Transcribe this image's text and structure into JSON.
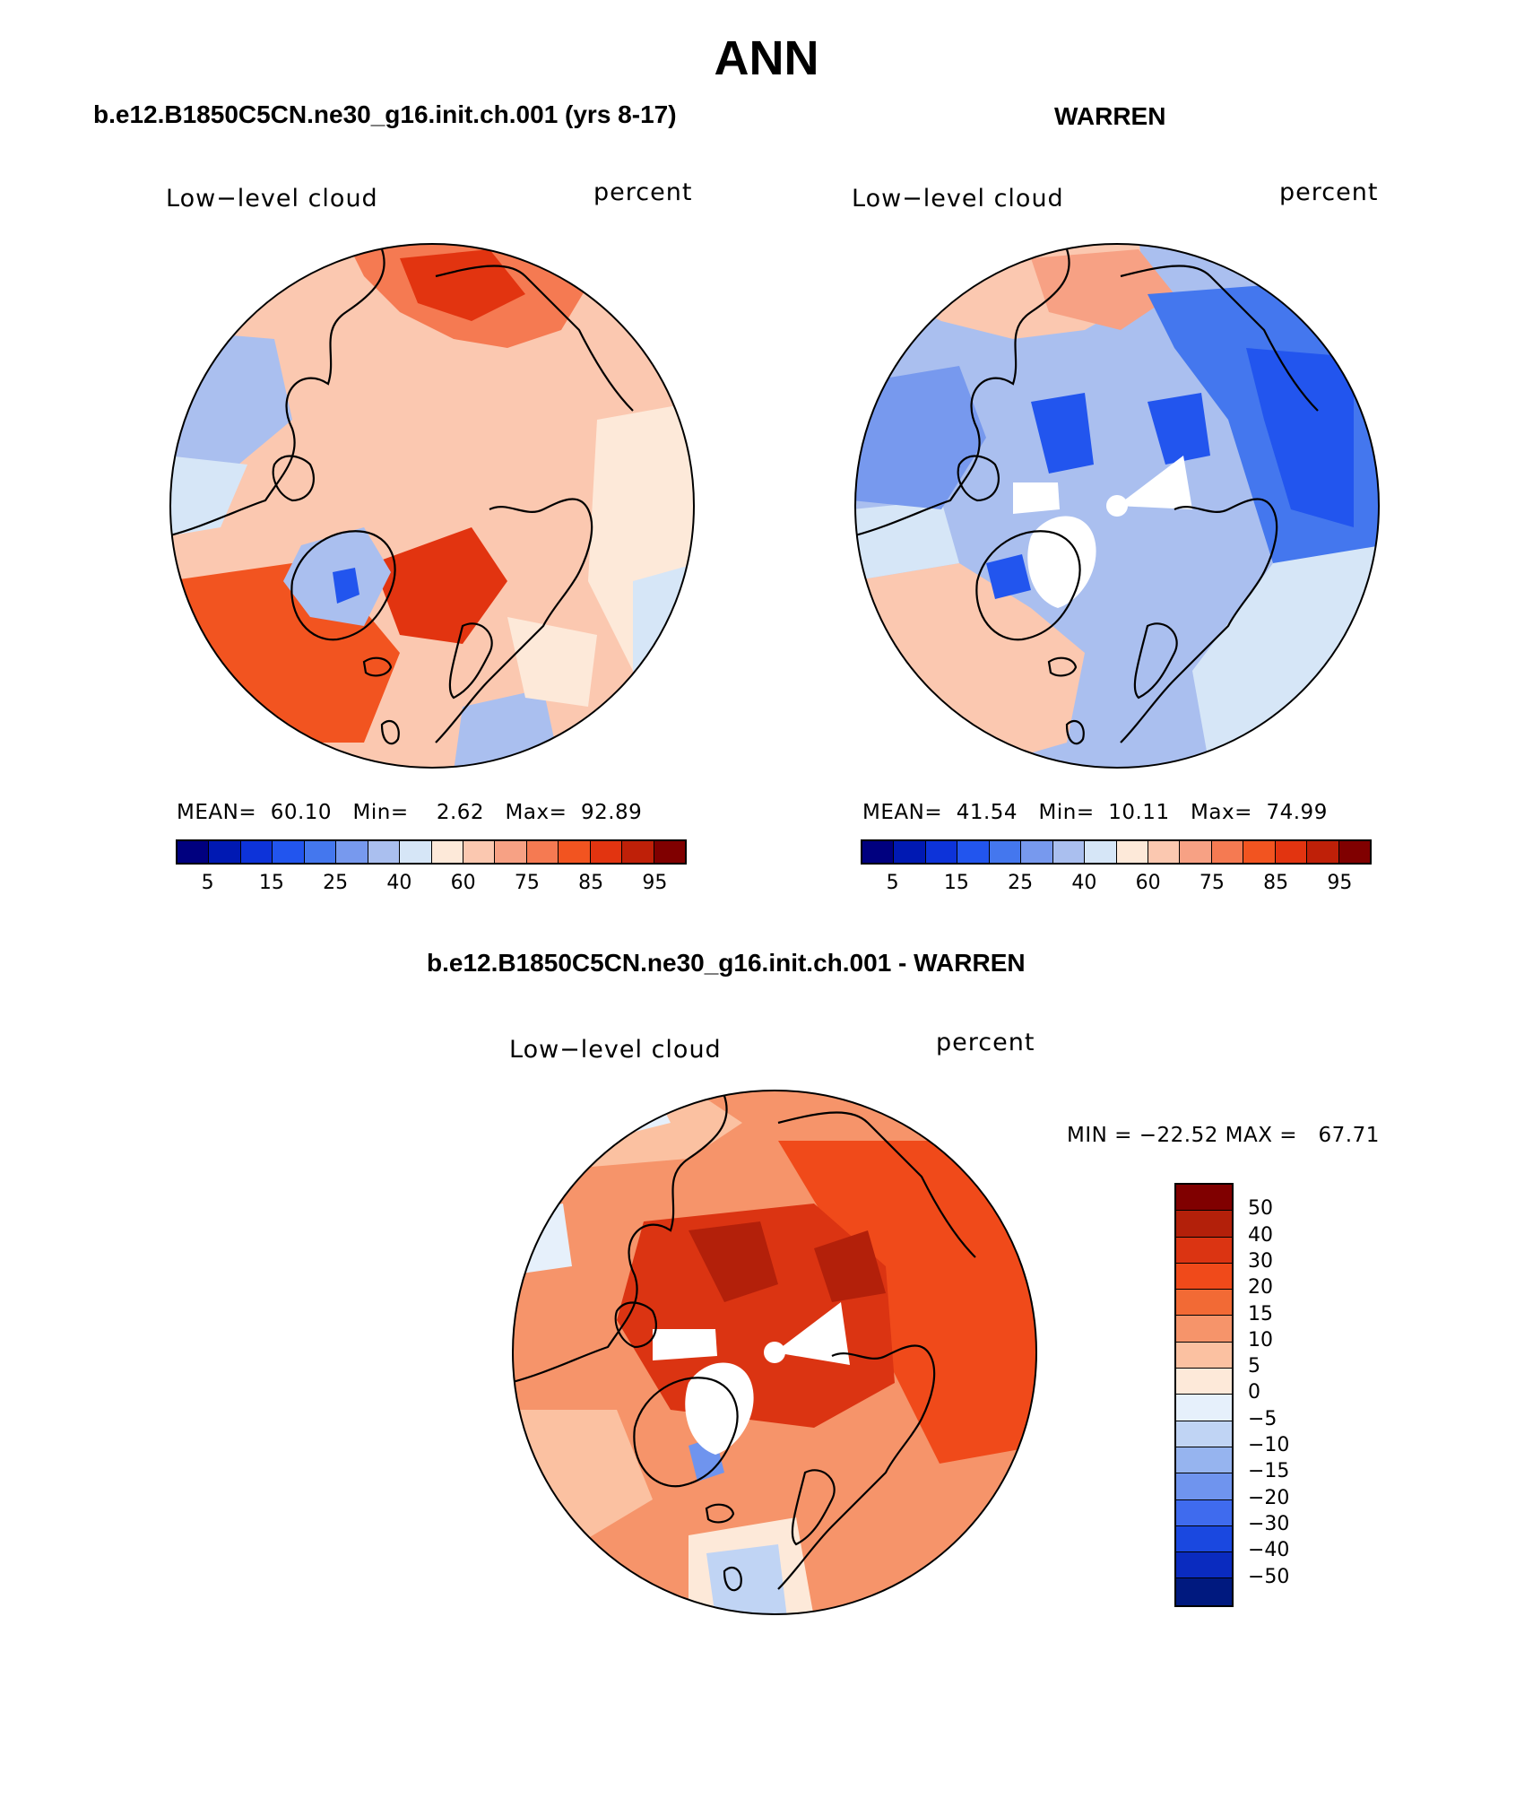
{
  "title": "ANN",
  "panels": {
    "model": {
      "title": "b.e12.B1850C5CN.ne30_g16.init.ch.001 (yrs 8-17)",
      "left_label": "Low−level cloud",
      "right_label": "percent",
      "stats": {
        "mean_label": "MEAN=",
        "mean": "60.10",
        "min_label": "Min=",
        "min": "2.62",
        "max_label": "Max=",
        "max": "92.89"
      }
    },
    "obs": {
      "title": "WARREN",
      "left_label": "Low−level cloud",
      "right_label": "percent",
      "stats": {
        "mean_label": "MEAN=",
        "mean": "41.54",
        "min_label": "Min=",
        "min": "10.11",
        "max_label": "Max=",
        "max": "74.99"
      }
    },
    "diff": {
      "title": "b.e12.B1850C5CN.ne30_g16.init.ch.001 - WARREN",
      "left_label": "Low−level cloud",
      "right_label": "percent",
      "stats_text": "MIN = −22.52 MAX =   67.71"
    }
  },
  "abs_colorbar": {
    "colors": [
      "#00007f",
      "#0019b3",
      "#0d33d9",
      "#2255ee",
      "#4477ee",
      "#7799ee",
      "#aabfef",
      "#d6e6f7",
      "#fde9d9",
      "#fbc8b0",
      "#f7a184",
      "#f57a52",
      "#f25420",
      "#e23410",
      "#bf2008",
      "#800000"
    ],
    "tick_labels": [
      "5",
      "15",
      "25",
      "40",
      "60",
      "75",
      "85",
      "95"
    ]
  },
  "diff_colorbar": {
    "colors": [
      "#800000",
      "#b3200a",
      "#db3412",
      "#f04a1a",
      "#f26a35",
      "#f6946a",
      "#fbc1a1",
      "#fde9d9",
      "#e6f0fb",
      "#c0d4f4",
      "#96b4ef",
      "#6f94ee",
      "#3f6bee",
      "#1a48e0",
      "#0a2bbf",
      "#00197f"
    ],
    "tick_labels": [
      "50",
      "40",
      "30",
      "20",
      "15",
      "10",
      "5",
      "0",
      "−5",
      "−10",
      "−15",
      "−20",
      "−30",
      "−40",
      "−50"
    ]
  },
  "map_fills": {
    "model": {
      "base": "#fbc8b0",
      "colors": [
        "#f57a52",
        "#f25420",
        "#e23410",
        "#fde9d9",
        "#d6e6f7",
        "#aabfef",
        "#7799ee",
        "#2255ee",
        "#fbc8b0"
      ]
    },
    "obs": {
      "base": "#aabfef",
      "colors": [
        "#2255ee",
        "#4477ee",
        "#7799ee",
        "#d6e6f7",
        "#fbc8b0",
        "#f7a184",
        "#ffffff"
      ]
    },
    "diff": {
      "base": "#f57a52",
      "colors": [
        "#f04a1a",
        "#db3412",
        "#b3200a",
        "#f6946a",
        "#fbc1a1",
        "#fde9d9",
        "#e6f0fb",
        "#c0d4f4",
        "#6f94ee",
        "#ffffff"
      ]
    }
  }
}
